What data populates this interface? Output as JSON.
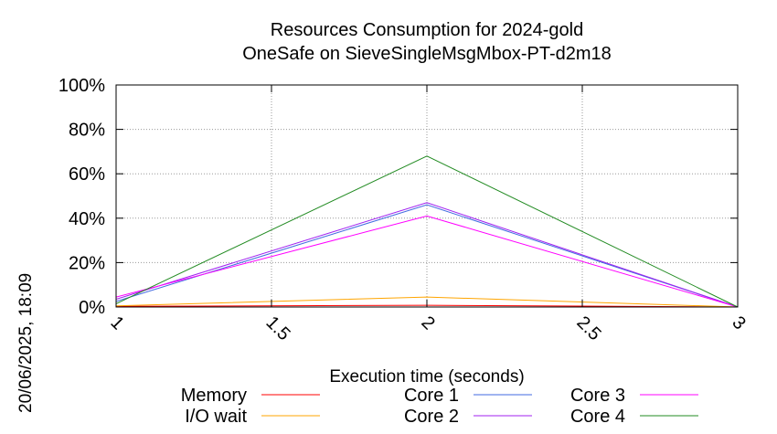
{
  "chart_data": {
    "type": "line",
    "title": "Resources Consumption for 2024-gold",
    "subtitle": "OneSafe on SieveSingleMsgMbox-PT-d2m18",
    "xlabel": "Execution time (seconds)",
    "ylabel": "",
    "side_label": "20/06/2025, 18:09",
    "xlim": [
      1,
      3
    ],
    "ylim": [
      0,
      100
    ],
    "x_ticks": [
      "1",
      "1.5",
      "2",
      "2.5",
      "3"
    ],
    "x_tick_values": [
      1,
      1.5,
      2,
      2.5,
      3
    ],
    "y_ticks": [
      "0%",
      "20%",
      "40%",
      "60%",
      "80%",
      "100%"
    ],
    "y_tick_values": [
      0,
      20,
      40,
      60,
      80,
      100
    ],
    "grid": true,
    "legend_position": "bottom",
    "x": [
      1,
      2,
      3
    ],
    "series": [
      {
        "name": "Memory",
        "color": "#ff0000",
        "values": [
          0.3,
          0.8,
          0
        ]
      },
      {
        "name": "I/O wait",
        "color": "#ffa500",
        "values": [
          0.5,
          4.5,
          0
        ]
      },
      {
        "name": "Core 1",
        "color": "#4169e1",
        "values": [
          2.5,
          46,
          0
        ]
      },
      {
        "name": "Core 2",
        "color": "#a020f0",
        "values": [
          3.5,
          47,
          0
        ]
      },
      {
        "name": "Core 3",
        "color": "#ff00ff",
        "values": [
          4.5,
          41,
          0
        ]
      },
      {
        "name": "Core 4",
        "color": "#228b22",
        "values": [
          1.5,
          68,
          0
        ]
      }
    ]
  }
}
